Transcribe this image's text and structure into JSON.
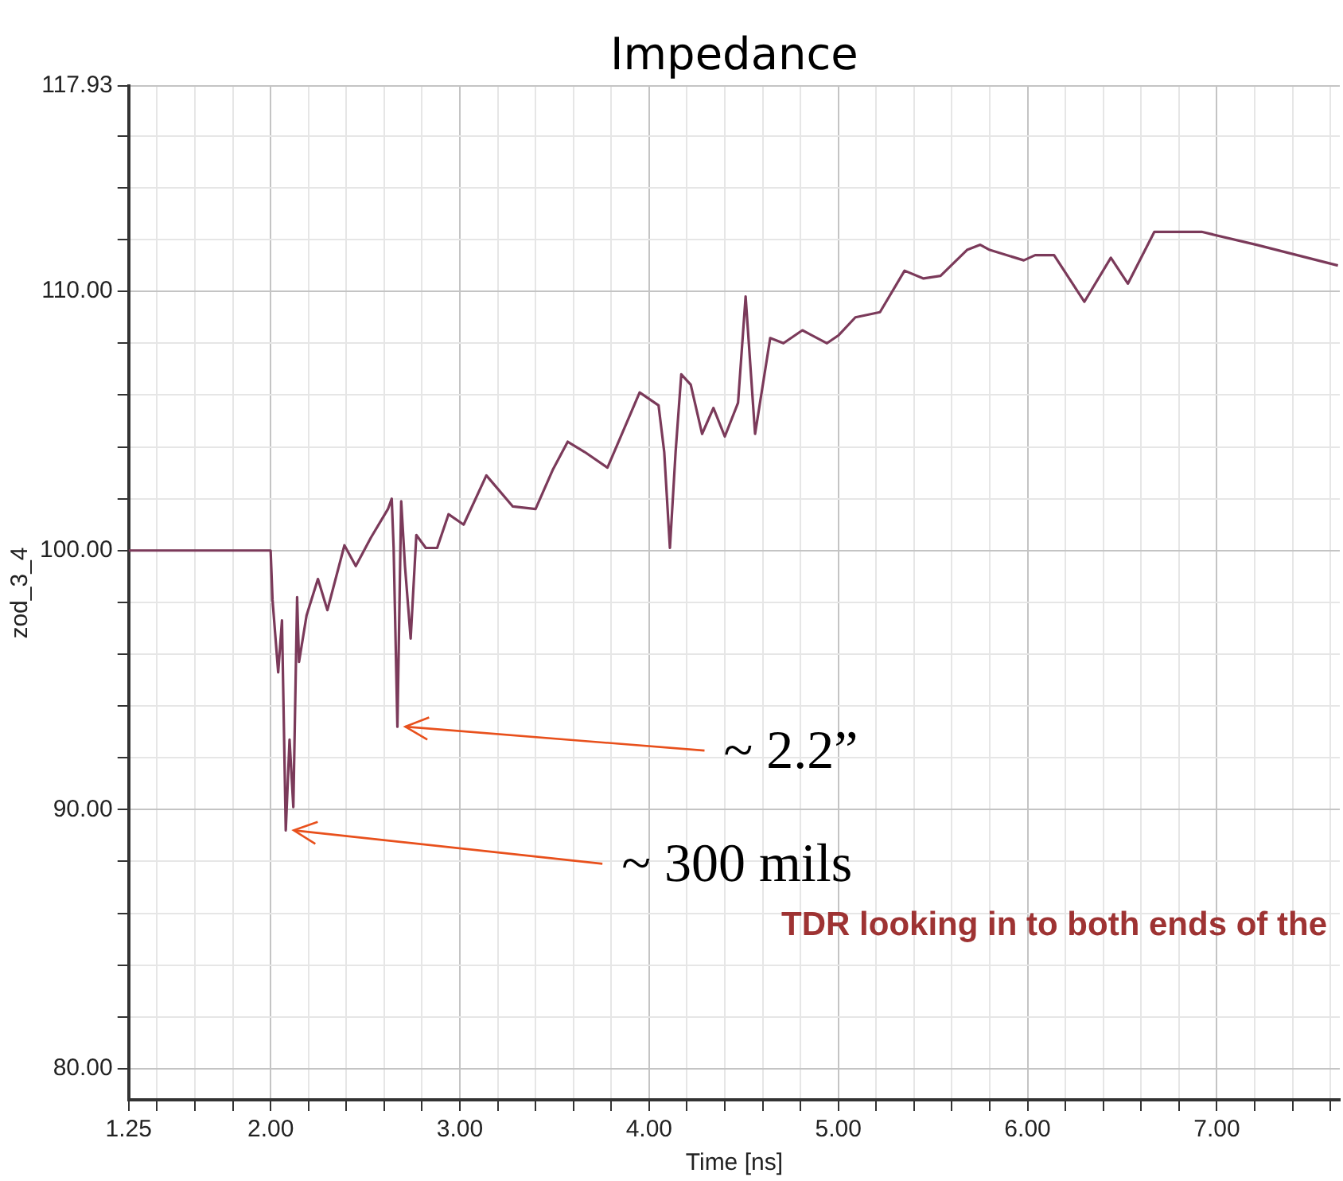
{
  "chart_data": {
    "type": "line",
    "title": "Impedance",
    "xlabel": "Time [ns]",
    "ylabel": "zod_3_4",
    "xlim": [
      1.25,
      7.65
    ],
    "ylim": [
      78.8,
      117.93
    ],
    "xticks": [
      1.25,
      {
        "value": 1.4,
        "label": null
      },
      {
        "value": 1.6,
        "label": null
      },
      {
        "value": 1.8,
        "label": null
      },
      {
        "value": 2,
        "label": "2.00"
      },
      {
        "value": 2.2,
        "label": null
      },
      {
        "value": 2.4,
        "label": null
      },
      {
        "value": 2.6,
        "label": null
      },
      {
        "value": 2.8,
        "label": null
      },
      {
        "value": 3,
        "label": "3.00"
      },
      {
        "value": 3.2,
        "label": null
      },
      {
        "value": 3.4,
        "label": null
      },
      {
        "value": 3.6,
        "label": null
      },
      {
        "value": 3.8,
        "label": null
      },
      {
        "value": 4,
        "label": "4.00"
      },
      {
        "value": 4.2,
        "label": null
      },
      {
        "value": 4.4,
        "label": null
      },
      {
        "value": 4.6,
        "label": null
      },
      {
        "value": 4.8,
        "label": null
      },
      {
        "value": 5,
        "label": "5.00"
      },
      {
        "value": 5.2,
        "label": null
      },
      {
        "value": 5.4,
        "label": null
      },
      {
        "value": 5.6,
        "label": null
      },
      {
        "value": 5.8,
        "label": null
      },
      {
        "value": 6,
        "label": "6.00"
      },
      {
        "value": 6.2,
        "label": null
      },
      {
        "value": 6.4,
        "label": null
      },
      {
        "value": 6.6,
        "label": null
      },
      {
        "value": 6.8,
        "label": null
      },
      {
        "value": 7,
        "label": "7.00"
      },
      {
        "value": 7.2,
        "label": null
      },
      {
        "value": 7.4,
        "label": null
      },
      {
        "value": 7.6,
        "label": null
      }
    ],
    "yticks": [
      {
        "value": 80,
        "label": "80.00"
      },
      {
        "value": 82,
        "label": null
      },
      {
        "value": 84,
        "label": null
      },
      {
        "value": 86,
        "label": null
      },
      {
        "value": 88,
        "label": null
      },
      {
        "value": 90,
        "label": "90.00"
      },
      {
        "value": 92,
        "label": null
      },
      {
        "value": 94,
        "label": null
      },
      {
        "value": 96,
        "label": null
      },
      {
        "value": 98,
        "label": null
      },
      {
        "value": 100,
        "label": "100.00"
      },
      {
        "value": 102,
        "label": null
      },
      {
        "value": 104,
        "label": null
      },
      {
        "value": 106,
        "label": null
      },
      {
        "value": 108,
        "label": null
      },
      {
        "value": 110,
        "label": "110.00"
      },
      {
        "value": 112,
        "label": null
      },
      {
        "value": 114,
        "label": null
      },
      {
        "value": 116,
        "label": null
      },
      117.93
    ],
    "grid": true,
    "legend": false,
    "marker": "none",
    "line_style": "solid",
    "x": [
      1.25,
      2.0,
      2.01,
      2.04,
      2.06,
      2.08,
      2.1,
      2.12,
      2.14,
      2.15,
      2.19,
      2.25,
      2.3,
      2.39,
      2.45,
      2.53,
      2.62,
      2.64,
      2.65,
      2.67,
      2.69,
      2.71,
      2.74,
      2.77,
      2.82,
      2.88,
      2.94,
      3.02,
      3.14,
      3.28,
      3.4,
      3.49,
      3.57,
      3.66,
      3.78,
      3.95,
      4.05,
      4.08,
      4.11,
      4.14,
      4.17,
      4.22,
      4.28,
      4.34,
      4.4,
      4.47,
      4.51,
      4.56,
      4.64,
      4.71,
      4.81,
      4.94,
      5.0,
      5.09,
      5.22,
      5.35,
      5.45,
      5.54,
      5.68,
      5.75,
      5.8,
      5.98,
      6.04,
      6.14,
      6.3,
      6.44,
      6.53,
      6.67,
      6.92,
      7.21,
      7.64
    ],
    "series": [
      {
        "color": "#7b3a5a",
        "values": [
          100,
          100,
          98.1,
          95.3,
          97.3,
          89.2,
          92.7,
          90.1,
          98.2,
          95.7,
          97.5,
          98.9,
          97.7,
          100.2,
          99.4,
          100.5,
          101.6,
          102.0,
          100.1,
          93.2,
          101.9,
          99.4,
          96.6,
          100.6,
          100.1,
          100.1,
          101.4,
          101.0,
          102.9,
          101.7,
          101.6,
          103.1,
          104.2,
          103.8,
          103.2,
          106.1,
          105.6,
          103.8,
          100.1,
          103.8,
          106.8,
          106.4,
          104.5,
          105.5,
          104.4,
          105.7,
          109.8,
          104.5,
          108.2,
          108.0,
          108.5,
          108.0,
          108.3,
          109.0,
          109.2,
          110.8,
          110.5,
          110.6,
          111.6,
          111.8,
          111.6,
          111.2,
          111.4,
          111.4,
          109.6,
          111.3,
          110.3,
          112.3,
          112.3,
          111.8,
          111.0
        ]
      }
    ],
    "annotations": [
      {
        "text": "~ 2.2”",
        "x": 2.67,
        "y": 93.2
      },
      {
        "text": "~ 300 mils",
        "x": 2.08,
        "y": 89.2
      },
      "TDR looking in to both ends of the"
    ]
  }
}
